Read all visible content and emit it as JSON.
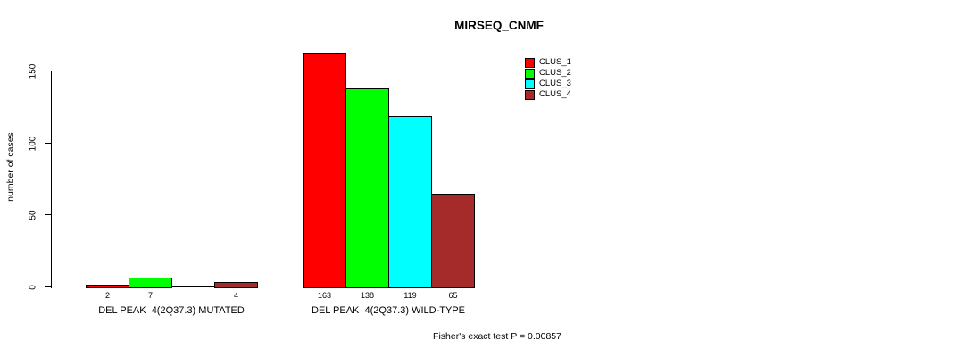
{
  "chart_data": {
    "type": "bar",
    "title": "MIRSEQ_CNMF",
    "ylabel": "number of cases",
    "ylim": [
      0,
      150
    ],
    "yticks": [
      0,
      50,
      100,
      150
    ],
    "grid": false,
    "legend_position": "top-right",
    "categories": [
      "DEL PEAK  4(2Q37.3) MUTATED",
      "DEL PEAK  4(2Q37.3) WILD-TYPE"
    ],
    "series": [
      {
        "name": "CLUS_1",
        "color": "#ff0000",
        "values": [
          2,
          163
        ]
      },
      {
        "name": "CLUS_2",
        "color": "#00ff00",
        "values": [
          7,
          138
        ]
      },
      {
        "name": "CLUS_3",
        "color": "#00ffff",
        "values": [
          0,
          119
        ]
      },
      {
        "name": "CLUS_4",
        "color": "#a52a2a",
        "values": [
          4,
          65
        ]
      }
    ],
    "bar_value_labels": [
      "2",
      "7",
      "4",
      "163",
      "138",
      "119",
      "65"
    ],
    "footnote": "Fisher's exact test P = 0.00857"
  }
}
